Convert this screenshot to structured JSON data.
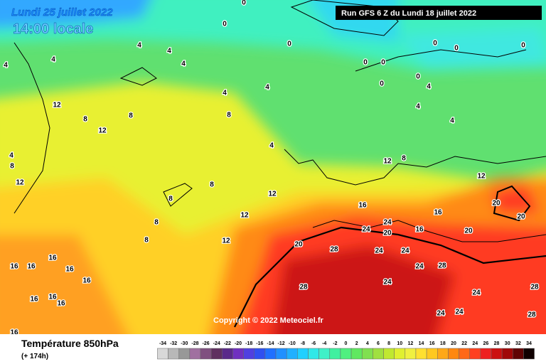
{
  "header": {
    "date": "Lundi 25 juillet 2022",
    "time": "14:00 locale",
    "run": "Run GFS 6 Z du Lundi 18 juillet 2022"
  },
  "copyright": "Copyright © 2022 Meteociel.fr",
  "footer": {
    "parameter": "Température 850hPa",
    "lead": "(+ 174h)"
  },
  "scale": {
    "values": [
      -34,
      -32,
      -30,
      -28,
      -26,
      -24,
      -22,
      -20,
      -18,
      -16,
      -14,
      -12,
      -10,
      -8,
      -6,
      -4,
      -2,
      0,
      2,
      4,
      6,
      8,
      10,
      12,
      14,
      16,
      18,
      20,
      22,
      24,
      26,
      28,
      30,
      32,
      34
    ],
    "colors": [
      "#d8d8d8",
      "#b8b8b8",
      "#989898",
      "#a070a0",
      "#805080",
      "#603060",
      "#5a2a8a",
      "#7030c0",
      "#5040e0",
      "#3050f0",
      "#2070ff",
      "#2090ff",
      "#20b0ff",
      "#20d0ff",
      "#30e8e8",
      "#40f0c8",
      "#40f0a0",
      "#50f080",
      "#60e860",
      "#80e050",
      "#a0e040",
      "#c0e830",
      "#e0f030",
      "#f0f040",
      "#ffe030",
      "#ffc820",
      "#ffa818",
      "#ff8810",
      "#ff6818",
      "#ff4020",
      "#ee2020",
      "#cc1010",
      "#a00808",
      "#600404",
      "#100000"
    ]
  },
  "contour_labels": [
    0,
    0,
    0,
    0,
    0,
    0,
    0,
    0,
    0,
    0,
    4,
    4,
    4,
    4,
    8,
    8,
    8,
    8,
    8,
    8,
    8,
    8,
    12,
    12,
    12,
    12,
    12,
    12,
    12,
    12,
    16,
    16,
    16,
    20,
    20,
    20,
    20,
    20,
    24,
    24,
    24,
    24,
    28,
    28,
    24,
    24,
    28,
    24,
    24,
    24,
    28,
    28,
    16,
    16,
    16,
    16,
    16,
    16,
    16,
    16,
    16,
    4,
    8,
    4,
    4,
    4,
    4,
    4,
    4,
    4
  ]
}
